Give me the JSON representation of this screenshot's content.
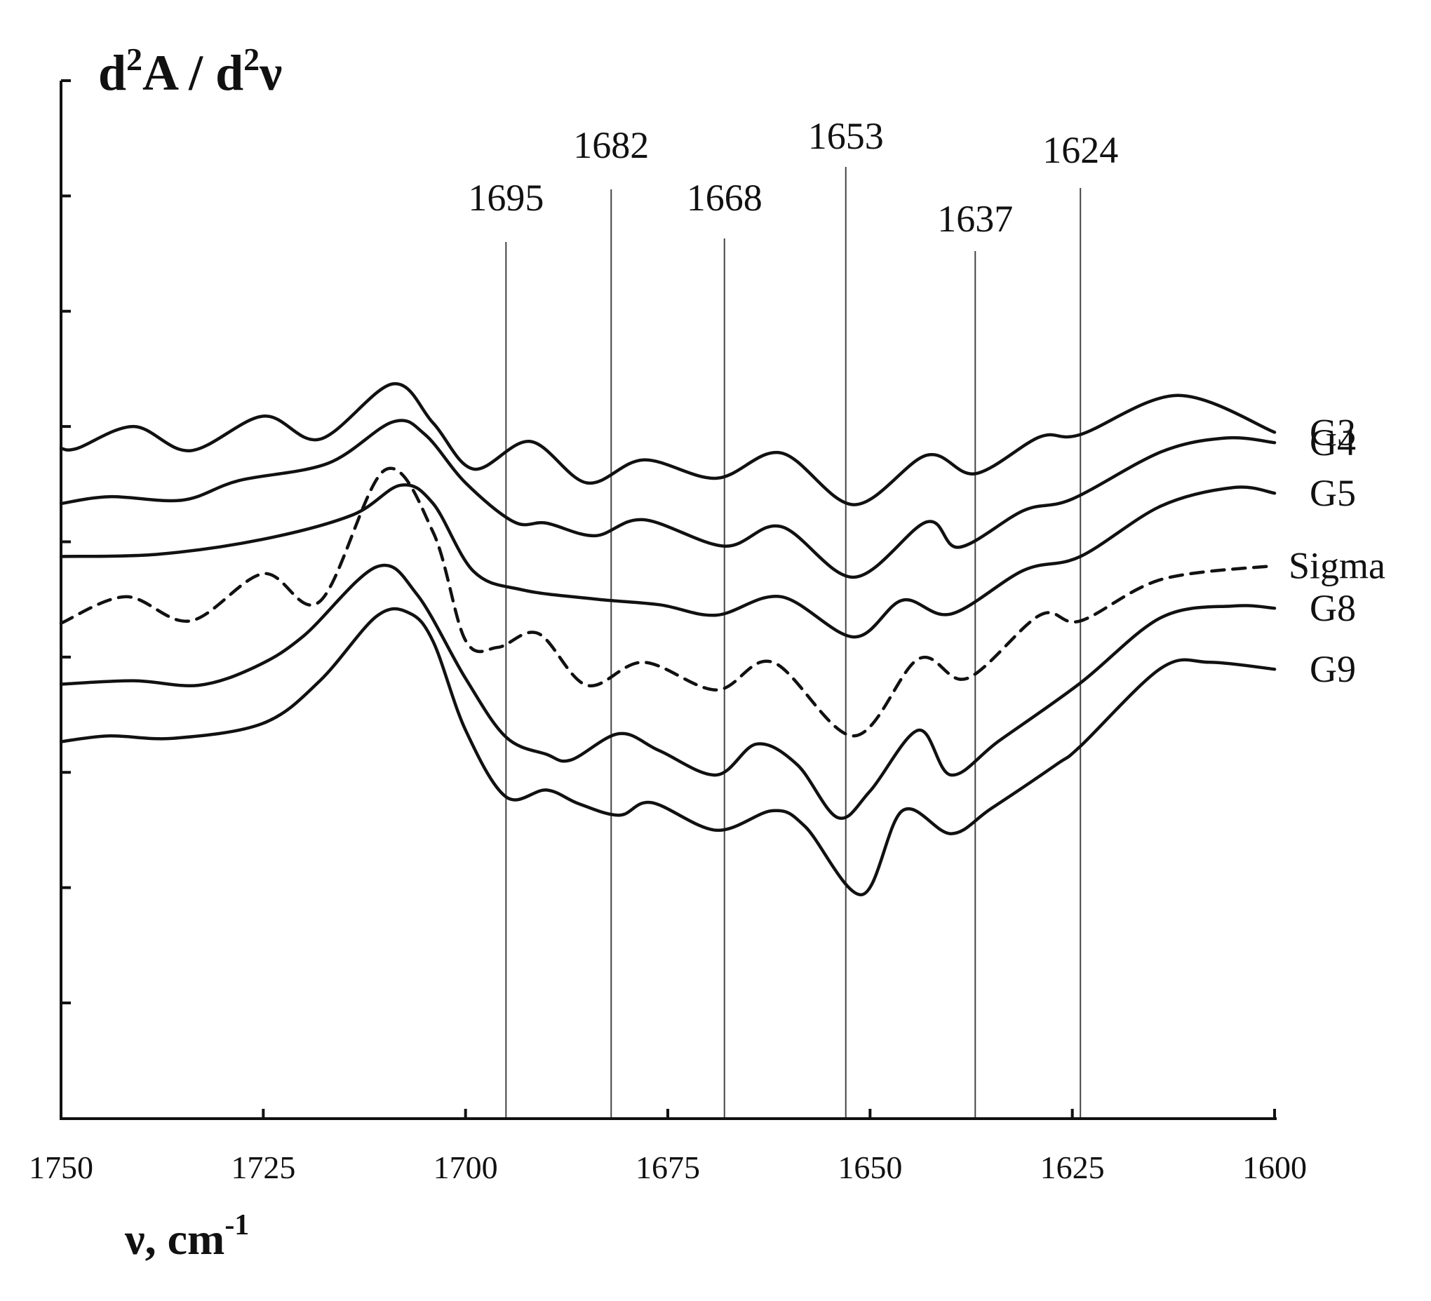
{
  "chart_data": {
    "type": "line",
    "ylabel": {
      "base": "d",
      "sup": "2",
      "mid": "A / d",
      "sup2": "2",
      "end": "ν"
    },
    "xlabel": {
      "main": "ν, cm",
      "sup": "-1"
    },
    "xlim": [
      1750,
      1600
    ],
    "x_reversed": true,
    "x_ticks": [
      1750,
      1725,
      1700,
      1675,
      1650,
      1625,
      1600
    ],
    "y_ticks_count": 9,
    "y_tick_labels_shown": false,
    "y_units": "arbitrary (curves vertically offset)",
    "peak_markers": [
      {
        "x": 1695,
        "label": "1695"
      },
      {
        "x": 1682,
        "label": "1682"
      },
      {
        "x": 1668,
        "label": "1668"
      },
      {
        "x": 1653,
        "label": "1653"
      },
      {
        "x": 1637,
        "label": "1637"
      },
      {
        "x": 1624,
        "label": "1624"
      }
    ],
    "series": [
      {
        "name": "G3",
        "style": "solid",
        "x": [
          1750,
          1748,
          1741,
          1734,
          1725,
          1718,
          1709,
          1704,
          1699,
          1692,
          1685,
          1678,
          1669,
          1661,
          1652,
          1643,
          1637,
          1629,
          1624,
          1612,
          1600
        ],
        "y": [
          9.8,
          9.8,
          11.7,
          9.6,
          12.6,
          10.6,
          15.4,
          12.0,
          8.0,
          10.4,
          6.8,
          8.8,
          7.2,
          9.4,
          4.9,
          9.2,
          7.6,
          10.8,
          11.0,
          14.4,
          11.2
        ]
      },
      {
        "name": "G4",
        "style": "solid",
        "x": [
          1750,
          1744,
          1735,
          1728,
          1717,
          1709,
          1705,
          1700,
          1694,
          1690,
          1684,
          1678,
          1668,
          1661,
          1652,
          1643,
          1639,
          1631,
          1625,
          1614,
          1606,
          1600
        ],
        "y": [
          5.0,
          5.6,
          5.3,
          7.0,
          8.5,
          12.1,
          11.0,
          6.8,
          3.4,
          3.3,
          2.2,
          3.6,
          1.3,
          3.0,
          -1.4,
          3.4,
          1.2,
          4.4,
          5.4,
          9.5,
          10.7,
          10.3
        ]
      },
      {
        "name": "G5",
        "style": "solid",
        "x": [
          1750,
          1738,
          1725,
          1714,
          1708,
          1704,
          1699,
          1693,
          1684,
          1676,
          1669,
          1661,
          1652,
          1646,
          1640,
          1631,
          1624,
          1614,
          1605,
          1600
        ],
        "y": [
          0.4,
          0.6,
          1.9,
          4.0,
          6.6,
          5.0,
          -0.9,
          -2.5,
          -3.3,
          -3.8,
          -4.7,
          -3.1,
          -6.6,
          -3.4,
          -4.6,
          -0.8,
          0.4,
          4.8,
          6.4,
          5.9
        ]
      },
      {
        "name": "Sigma",
        "style": "dashed",
        "x": [
          1750,
          1742,
          1734,
          1725,
          1718,
          1710,
          1704,
          1700,
          1696,
          1691,
          1685,
          1678,
          1669,
          1662,
          1652,
          1644,
          1638,
          1629,
          1624,
          1614,
          1600
        ],
        "y": [
          -5.4,
          -3.1,
          -5.2,
          -1.1,
          -3.5,
          7.9,
          2.5,
          -6.9,
          -7.5,
          -6.3,
          -10.8,
          -8.8,
          -11.2,
          -8.8,
          -15.2,
          -8.5,
          -10.2,
          -4.7,
          -5.2,
          -1.6,
          -0.4
        ]
      },
      {
        "name": "G8",
        "style": "solid",
        "x": [
          1750,
          1741,
          1733,
          1726,
          1720,
          1711,
          1706,
          1700,
          1695,
          1690,
          1687,
          1681,
          1676,
          1669,
          1664,
          1659,
          1654,
          1650,
          1644,
          1640,
          1634,
          1624,
          1614,
          1605,
          1600
        ],
        "y": [
          -10.7,
          -10.4,
          -10.8,
          -9.2,
          -6.5,
          -0.5,
          -2.9,
          -10.2,
          -15.3,
          -16.8,
          -17.3,
          -15.0,
          -16.5,
          -18.6,
          -15.9,
          -17.7,
          -22.3,
          -20.0,
          -14.7,
          -18.6,
          -15.6,
          -10.6,
          -4.9,
          -3.9,
          -4.1
        ]
      },
      {
        "name": "G9",
        "style": "solid",
        "x": [
          1750,
          1744,
          1736,
          1725,
          1718,
          1711,
          1707,
          1704,
          1700,
          1695,
          1690,
          1686,
          1681,
          1677,
          1669,
          1662,
          1658,
          1651,
          1646,
          1640,
          1635,
          1627,
          1624,
          1614,
          1608,
          1600
        ],
        "y": [
          -15.7,
          -15.2,
          -15.4,
          -14.1,
          -10.4,
          -4.8,
          -4.5,
          -7.0,
          -14.7,
          -20.5,
          -19.9,
          -21.1,
          -22.1,
          -21.0,
          -23.4,
          -21.7,
          -23.1,
          -29.0,
          -21.7,
          -23.7,
          -21.5,
          -17.7,
          -16.1,
          -9.3,
          -8.8,
          -9.4
        ]
      }
    ]
  }
}
